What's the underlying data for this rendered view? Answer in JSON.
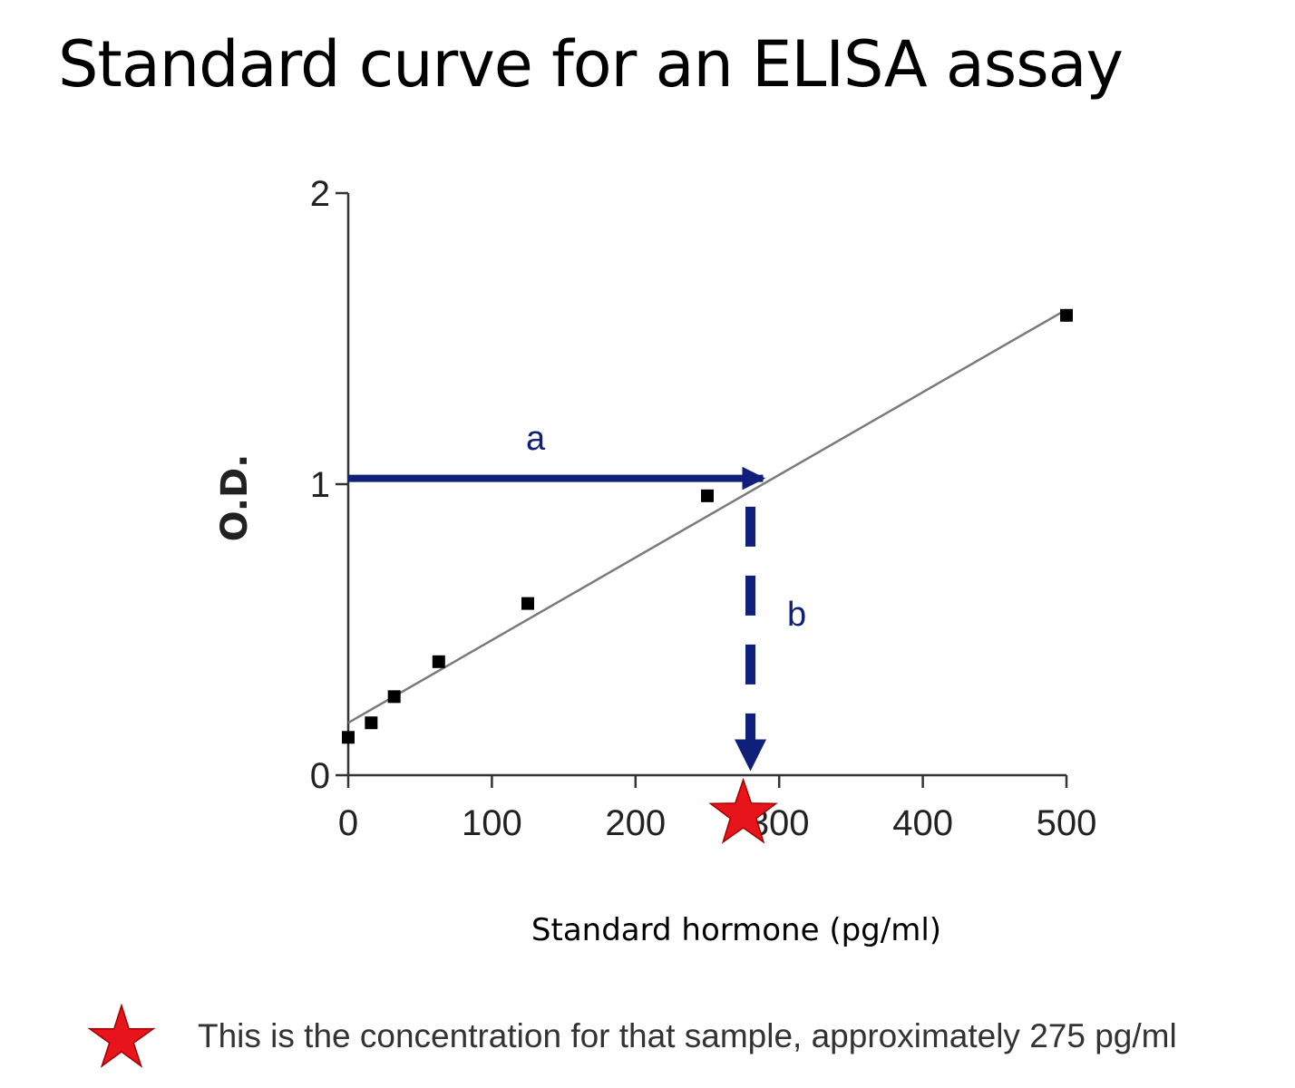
{
  "title": "Standard curve for an ELISA assay",
  "chart_data": {
    "type": "scatter",
    "xlabel": "Standard hormone (pg/ml)",
    "ylabel": "O.D.",
    "xlim": [
      0,
      500
    ],
    "ylim": [
      0,
      2
    ],
    "xticks": [
      0,
      100,
      200,
      300,
      400,
      500
    ],
    "yticks": [
      0,
      1,
      2
    ],
    "grid": false,
    "points": [
      {
        "x": 0,
        "y": 0.13
      },
      {
        "x": 16,
        "y": 0.18
      },
      {
        "x": 32,
        "y": 0.27
      },
      {
        "x": 63,
        "y": 0.39
      },
      {
        "x": 125,
        "y": 0.59
      },
      {
        "x": 250,
        "y": 0.96
      },
      {
        "x": 500,
        "y": 1.58
      }
    ],
    "fit_line": {
      "x0": 0,
      "y0": 0.18,
      "x1": 500,
      "y1": 1.6
    },
    "annotations": {
      "arrow_a": {
        "label": "a",
        "from": [
          0,
          1.02
        ],
        "to": [
          280,
          1.02
        ]
      },
      "arrow_b": {
        "label": "b",
        "from": [
          280,
          0.96
        ],
        "to": [
          280,
          0.0
        ]
      },
      "sample_marker": {
        "x": 275,
        "y": 0,
        "shape": "star",
        "color": "#e8141c"
      }
    },
    "colors": {
      "arrow": "#0f1f7a",
      "points": "#000000",
      "line": "#7a7a7a",
      "star": "#e8141c"
    }
  },
  "note": {
    "icon": "red-star-icon",
    "text": "This is the concentration for that sample, approximately 275 pg/ml"
  }
}
